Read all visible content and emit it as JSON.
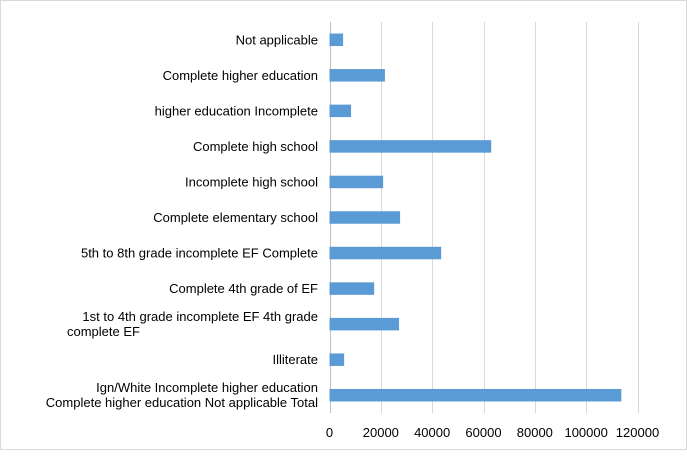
{
  "chart_data": {
    "type": "bar",
    "orientation": "horizontal",
    "title": "",
    "xlabel": "",
    "ylabel": "",
    "xlim": [
      0,
      120000
    ],
    "grid": true,
    "legend": "none",
    "bar_color": "#5B9BD5",
    "x_ticks": [
      "0",
      "20000",
      "40000",
      "60000",
      "80000",
      "100000",
      "120000"
    ],
    "categories": [
      [
        "Not applicable"
      ],
      [
        "Complete higher education"
      ],
      [
        "higher education Incomplete"
      ],
      [
        "Complete high school"
      ],
      [
        "Incomplete high school"
      ],
      [
        "Complete elementary school"
      ],
      [
        "5th to 8th grade incomplete EF Complete"
      ],
      [
        "Complete 4th grade of EF"
      ],
      [
        "1st to 4th grade incomplete EF 4th grade",
        "complete EF"
      ],
      [
        "Illiterate"
      ],
      [
        "Ign/White    Incomplete higher education",
        "Complete higher education Not applicable Total"
      ]
    ],
    "values": [
      5300,
      21600,
      8400,
      63000,
      20900,
      27500,
      43500,
      17400,
      27100,
      5700,
      113700
    ]
  }
}
